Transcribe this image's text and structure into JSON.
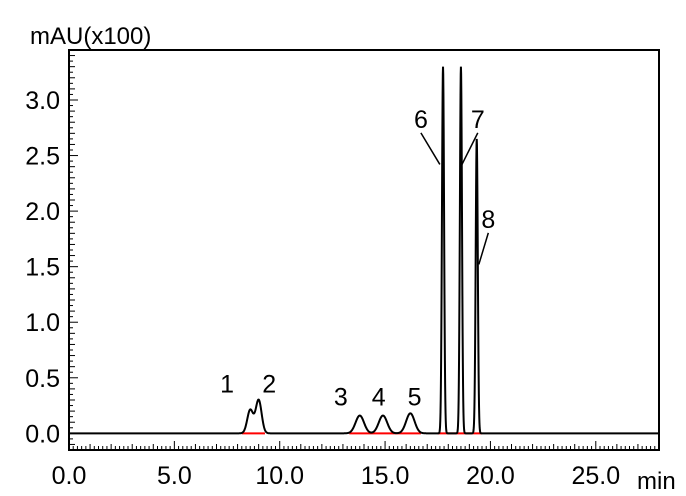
{
  "chart_data": {
    "type": "line",
    "ylabel": "mAU(x100)",
    "xlabel": "min",
    "xlim": [
      0,
      28
    ],
    "ylim": [
      -0.15,
      3.45
    ],
    "x_major_ticks": [
      0,
      5,
      10,
      15,
      20,
      25
    ],
    "x_tick_labels": [
      "0.0",
      "5.0",
      "10.0",
      "15.0",
      "20.0",
      "25.0"
    ],
    "y_major_ticks": [
      0,
      0.5,
      1.0,
      1.5,
      2.0,
      2.5,
      3.0
    ],
    "y_tick_labels": [
      "0.0",
      "0.5",
      "1.0",
      "1.5",
      "2.0",
      "2.5",
      "3.0"
    ],
    "grid": false,
    "series": [
      {
        "color": "#000000",
        "peaks": [
          {
            "label": "1",
            "retention_time": 8.6,
            "height": 0.21,
            "width": 0.14,
            "label_x": 7.5,
            "label_y": 0.45
          },
          {
            "label": "2",
            "retention_time": 9.0,
            "height": 0.3,
            "width": 0.14,
            "label_x": 9.5,
            "label_y": 0.45
          },
          {
            "label": "3",
            "retention_time": 13.8,
            "height": 0.16,
            "width": 0.2,
            "label_x": 12.9,
            "label_y": 0.33
          },
          {
            "label": "4",
            "retention_time": 14.9,
            "height": 0.16,
            "width": 0.2,
            "label_x": 14.7,
            "label_y": 0.33
          },
          {
            "label": "5",
            "retention_time": 16.2,
            "height": 0.18,
            "width": 0.2,
            "label_x": 16.4,
            "label_y": 0.33
          },
          {
            "label": "6",
            "retention_time": 17.75,
            "height": 3.3,
            "width": 0.05,
            "label_x": 16.7,
            "label_y": 2.83,
            "leader_to": [
              17.6,
              2.42
            ]
          },
          {
            "label": "7",
            "retention_time": 18.6,
            "height": 3.3,
            "width": 0.05,
            "label_x": 19.4,
            "label_y": 2.83,
            "leader_to": [
              18.65,
              2.42
            ]
          },
          {
            "label": "8",
            "retention_time": 19.35,
            "height": 2.65,
            "width": 0.05,
            "label_x": 19.9,
            "label_y": 1.93,
            "leader_to": [
              19.45,
              1.52
            ]
          }
        ]
      }
    ],
    "baseline_color": "#ff0000",
    "integration_baselines": [
      [
        8.2,
        9.3
      ],
      [
        13.3,
        16.7
      ],
      [
        17.5,
        19.6
      ]
    ]
  }
}
